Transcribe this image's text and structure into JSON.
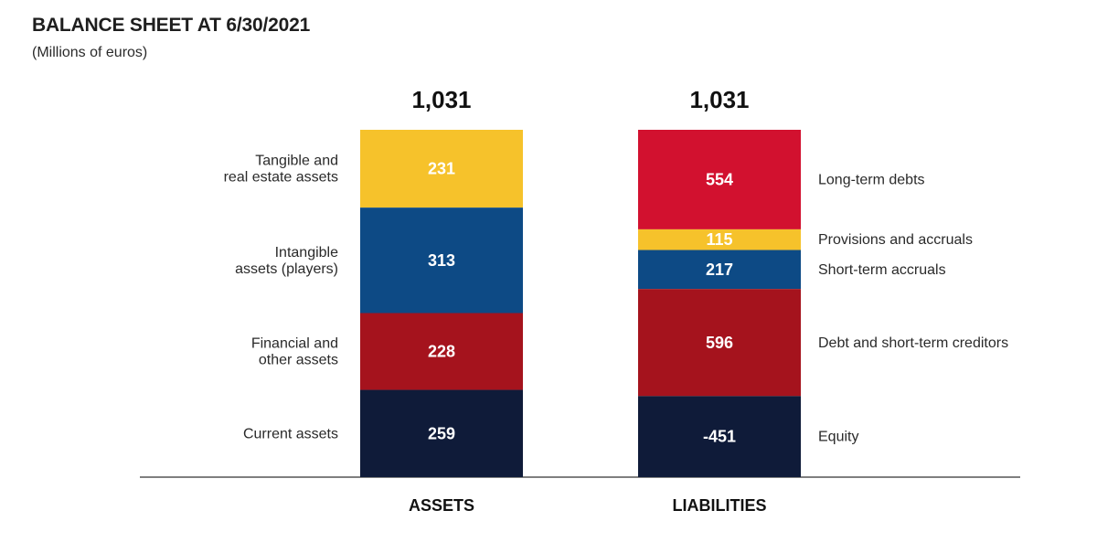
{
  "title": "BALANCE SHEET AT 6/30/2021",
  "subtitle": "(Millions of euros)",
  "chart_data": {
    "type": "bar",
    "stacked": true,
    "categories": [
      "ASSETS",
      "LIABILITIES"
    ],
    "totals": [
      "1,031",
      "1,031"
    ],
    "grid": false,
    "stacks": [
      {
        "category": "ASSETS",
        "label_side": "left",
        "segments": [
          {
            "name": [
              "Tangible and",
              "real estate assets"
            ],
            "value": 231,
            "display": "231",
            "color": "#f6c22b"
          },
          {
            "name": [
              "Intangible",
              "assets (players)"
            ],
            "value": 313,
            "display": "313",
            "color": "#0d4a85"
          },
          {
            "name": [
              "Financial and",
              "other assets"
            ],
            "value": 228,
            "display": "228",
            "color": "#a5131d"
          },
          {
            "name": [
              "Current assets"
            ],
            "value": 259,
            "display": "259",
            "color": "#0f1b39"
          }
        ]
      },
      {
        "category": "LIABILITIES",
        "label_side": "right",
        "segments": [
          {
            "name": [
              "Long-term debts"
            ],
            "value": 554,
            "display": "554",
            "color": "#d2112f"
          },
          {
            "name": [
              "Provisions and accruals"
            ],
            "value": 115,
            "display": "115",
            "color": "#f6c22b"
          },
          {
            "name": [
              "Short-term accruals"
            ],
            "value": 217,
            "display": "217",
            "color": "#0d4a85"
          },
          {
            "name": [
              "Debt and short-term creditors"
            ],
            "value": 596,
            "display": "596",
            "color": "#a5131d"
          },
          {
            "name": [
              "Equity"
            ],
            "value": -451,
            "display": "-451",
            "color": "#0f1b39"
          }
        ]
      }
    ]
  }
}
